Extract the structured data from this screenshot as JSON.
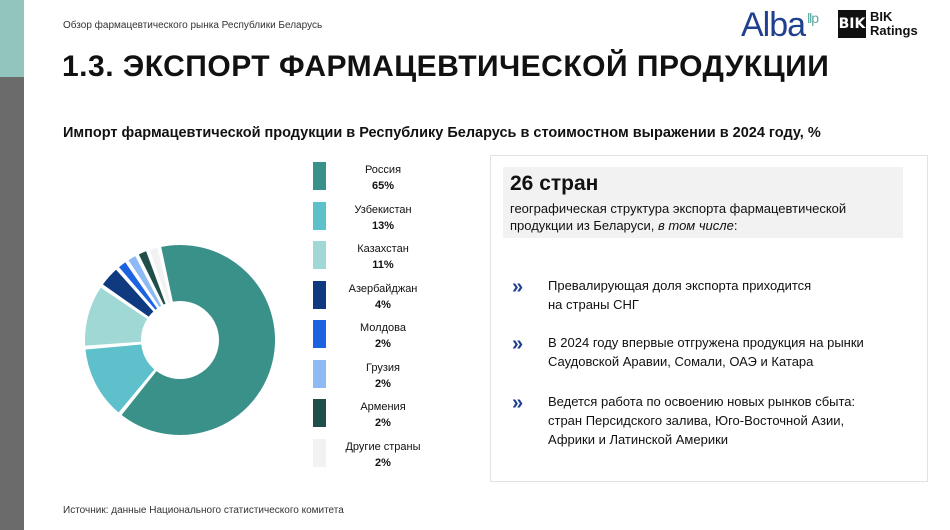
{
  "header": {
    "doc_title": "Обзор фармацевтического рынка Республики Беларусь",
    "logo_alba": "Alba",
    "logo_alba_suffix": "llp",
    "logo_bik_mark": "BIK",
    "logo_bik_line1": "BIK",
    "logo_bik_line2": "Ratings"
  },
  "page_title": "1.3. ЭКСПОРТ ФАРМАЦЕВТИЧЕСКОЙ ПРОДУКЦИИ",
  "colors": {
    "accent_teal": "#93c5bf",
    "sidebar_gray": "#6b6b6b",
    "chevron_blue": "#1f3f8f"
  },
  "chart_data": {
    "type": "pie",
    "donut": true,
    "title": "Импорт фармацевтической продукции в Республику Беларусь в стоимостном выражении в 2024 году, %",
    "legend_placement": "right",
    "categories": [
      "Россия",
      "Узбекистан",
      "Казахстан",
      "Азербайджан",
      "Молдова",
      "Грузия",
      "Армения",
      "Другие страны"
    ],
    "values": [
      65,
      13,
      11,
      4,
      2,
      2,
      2,
      2
    ],
    "value_labels": [
      "65%",
      "13%",
      "11%",
      "4%",
      "2%",
      "2%",
      "2%",
      "2%"
    ],
    "colors": [
      "#3a9189",
      "#5ec0cb",
      "#9fd8d4",
      "#0f3a80",
      "#1b63e3",
      "#8fb9f5",
      "#1f4f48",
      "#f2f2f2"
    ]
  },
  "info": {
    "count_title": "26 стран",
    "count_desc": "географическая структура экспорта фармацевтической продукции из Беларуси,",
    "count_desc_em": "в том числе",
    "count_desc_tail": ":",
    "bullet_icon": "double-chevron-right-icon",
    "bullets": [
      {
        "line1": "Превалирующая доля экспорта приходится",
        "line2": "на страны СНГ"
      },
      {
        "line1": "В 2024 году впервые отгружена продукция на рынки",
        "line2": "Саудовской Аравии, Сомали, ОАЭ и Катара"
      },
      {
        "line1": "Ведется работа по освоению новых рынков сбыта:",
        "line2": "стран Персидского залива, Юго-Восточной Азии,",
        "line3": "Африки и Латинской Америки"
      }
    ]
  },
  "source": "Источник: данные Национального статистического комитета"
}
